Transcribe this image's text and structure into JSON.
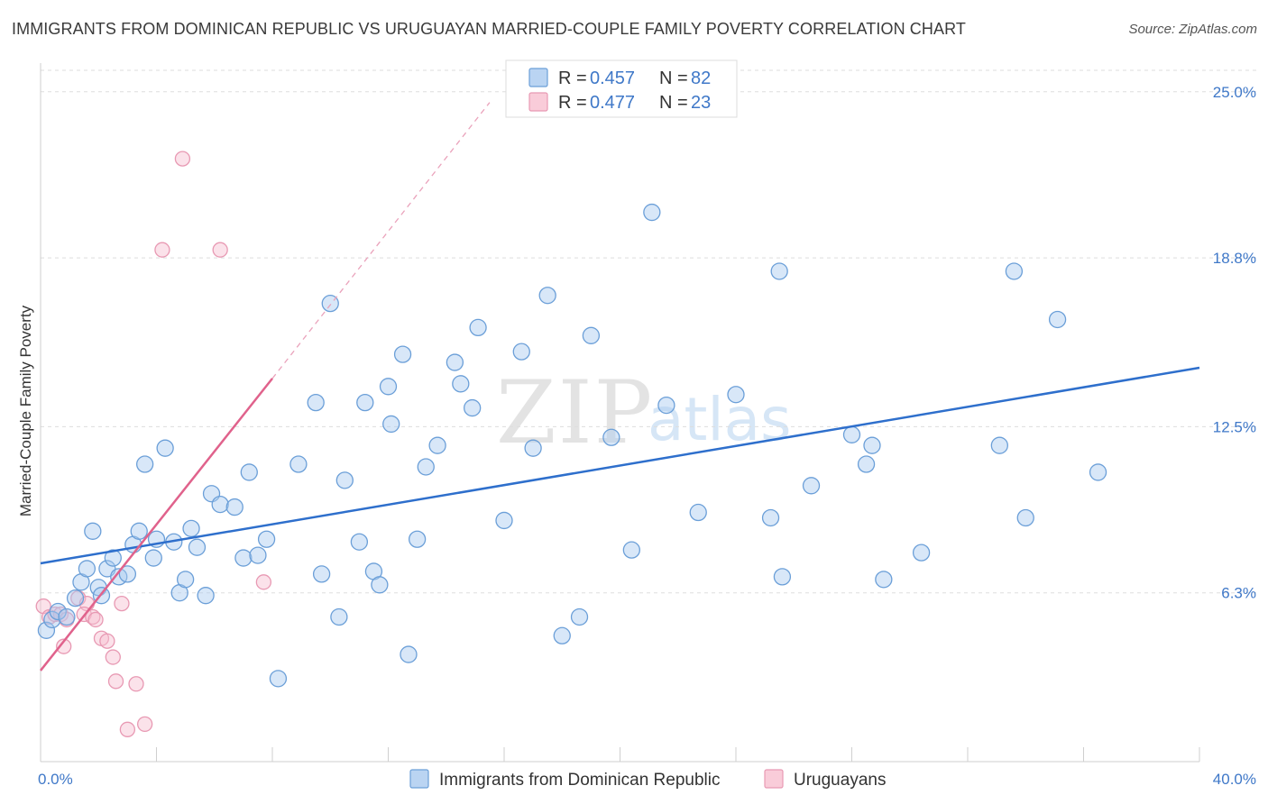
{
  "title": "IMMIGRANTS FROM DOMINICAN REPUBLIC VS URUGUAYAN MARRIED-COUPLE FAMILY POVERTY CORRELATION CHART",
  "source": "Source: ZipAtlas.com",
  "watermark": {
    "zip": "ZIP",
    "atlas": "atlas"
  },
  "chart_data": {
    "type": "scatter",
    "title": "IMMIGRANTS FROM DOMINICAN REPUBLIC VS URUGUAYAN MARRIED-COUPLE FAMILY POVERTY CORRELATION CHART",
    "xlabel": "",
    "ylabel": "Married-Couple Family Poverty",
    "xlim": [
      0,
      40
    ],
    "ylim": [
      0,
      25.8
    ],
    "x_tick_labels": [
      {
        "value": 0,
        "label": "0.0%"
      },
      {
        "value": 40,
        "label": "40.0%"
      }
    ],
    "x_minor_ticks": [
      0,
      4,
      8,
      12,
      16,
      20,
      24,
      28,
      32,
      36,
      40
    ],
    "y_ticks": [
      {
        "value": 6.3,
        "label": "6.3%"
      },
      {
        "value": 12.5,
        "label": "12.5%"
      },
      {
        "value": 18.8,
        "label": "18.8%"
      },
      {
        "value": 25.0,
        "label": "25.0%"
      }
    ],
    "grid": true,
    "legend_position": "top-center",
    "series": [
      {
        "name": "Immigrants from Dominican Republic",
        "color": "#a9c9ef",
        "edge_color": "#6b9fd8",
        "line_color": "#2e6fcc",
        "R": "0.457",
        "N": "82",
        "trend": {
          "x": [
            0,
            40
          ],
          "y": [
            7.4,
            14.7
          ]
        },
        "points": [
          [
            0.2,
            4.9
          ],
          [
            0.4,
            5.3
          ],
          [
            0.6,
            5.6
          ],
          [
            0.9,
            5.4
          ],
          [
            1.2,
            6.1
          ],
          [
            1.4,
            6.7
          ],
          [
            1.6,
            7.2
          ],
          [
            1.8,
            8.6
          ],
          [
            2.0,
            6.5
          ],
          [
            2.1,
            6.2
          ],
          [
            2.3,
            7.2
          ],
          [
            2.5,
            7.6
          ],
          [
            2.7,
            6.9
          ],
          [
            3.0,
            7.0
          ],
          [
            3.2,
            8.1
          ],
          [
            3.4,
            8.6
          ],
          [
            3.6,
            11.1
          ],
          [
            3.9,
            7.6
          ],
          [
            4.0,
            8.3
          ],
          [
            4.3,
            11.7
          ],
          [
            4.6,
            8.2
          ],
          [
            4.8,
            6.3
          ],
          [
            5.0,
            6.8
          ],
          [
            5.2,
            8.7
          ],
          [
            5.4,
            8.0
          ],
          [
            5.7,
            6.2
          ],
          [
            5.9,
            10.0
          ],
          [
            6.2,
            9.6
          ],
          [
            6.7,
            9.5
          ],
          [
            7.0,
            7.6
          ],
          [
            7.2,
            10.8
          ],
          [
            7.5,
            7.7
          ],
          [
            7.8,
            8.3
          ],
          [
            8.2,
            3.1
          ],
          [
            8.9,
            11.1
          ],
          [
            9.5,
            13.4
          ],
          [
            9.7,
            7.0
          ],
          [
            10.0,
            17.1
          ],
          [
            10.3,
            5.4
          ],
          [
            10.5,
            10.5
          ],
          [
            11.0,
            8.2
          ],
          [
            11.2,
            13.4
          ],
          [
            11.5,
            7.1
          ],
          [
            11.7,
            6.6
          ],
          [
            12.0,
            14.0
          ],
          [
            12.1,
            12.6
          ],
          [
            12.5,
            15.2
          ],
          [
            12.7,
            4.0
          ],
          [
            13.0,
            8.3
          ],
          [
            13.3,
            11.0
          ],
          [
            13.7,
            11.8
          ],
          [
            14.3,
            14.9
          ],
          [
            14.5,
            14.1
          ],
          [
            14.9,
            13.2
          ],
          [
            15.1,
            16.2
          ],
          [
            16.0,
            9.0
          ],
          [
            16.6,
            15.3
          ],
          [
            17.0,
            11.7
          ],
          [
            17.5,
            17.4
          ],
          [
            18.0,
            4.7
          ],
          [
            18.6,
            5.4
          ],
          [
            19.0,
            15.9
          ],
          [
            19.7,
            12.1
          ],
          [
            20.4,
            7.9
          ],
          [
            21.1,
            20.5
          ],
          [
            21.6,
            13.3
          ],
          [
            22.7,
            9.3
          ],
          [
            24.0,
            13.7
          ],
          [
            25.2,
            9.1
          ],
          [
            25.5,
            18.3
          ],
          [
            25.6,
            6.9
          ],
          [
            26.6,
            10.3
          ],
          [
            28.0,
            12.2
          ],
          [
            28.5,
            11.1
          ],
          [
            28.7,
            11.8
          ],
          [
            29.1,
            6.8
          ],
          [
            30.4,
            7.8
          ],
          [
            33.1,
            11.8
          ],
          [
            33.6,
            18.3
          ],
          [
            34.0,
            9.1
          ],
          [
            35.1,
            16.5
          ],
          [
            36.5,
            10.8
          ]
        ]
      },
      {
        "name": "Uruguayans",
        "color": "#f7bfd0",
        "edge_color": "#e899b3",
        "line_color": "#e0628c",
        "R": "0.477",
        "N": "23",
        "trend": {
          "x": [
            0,
            8.0
          ],
          "y": [
            3.4,
            14.3
          ]
        },
        "trend_dashed_extension": {
          "x": [
            8.0,
            15.5
          ],
          "y": [
            14.3,
            24.6
          ]
        },
        "points": [
          [
            0.1,
            5.8
          ],
          [
            0.3,
            5.4
          ],
          [
            0.5,
            5.5
          ],
          [
            0.7,
            5.5
          ],
          [
            0.8,
            4.3
          ],
          [
            0.9,
            5.3
          ],
          [
            1.3,
            6.1
          ],
          [
            1.6,
            5.9
          ],
          [
            1.5,
            5.5
          ],
          [
            1.8,
            5.4
          ],
          [
            1.9,
            5.3
          ],
          [
            2.1,
            4.6
          ],
          [
            2.3,
            4.5
          ],
          [
            2.5,
            3.9
          ],
          [
            2.6,
            3.0
          ],
          [
            2.8,
            5.9
          ],
          [
            3.0,
            1.2
          ],
          [
            3.3,
            2.9
          ],
          [
            3.6,
            1.4
          ],
          [
            4.2,
            19.1
          ],
          [
            4.9,
            22.5
          ],
          [
            6.2,
            19.1
          ],
          [
            7.7,
            6.7
          ]
        ]
      }
    ]
  },
  "legend": {
    "r_label": "R =",
    "n_label": "N ="
  }
}
